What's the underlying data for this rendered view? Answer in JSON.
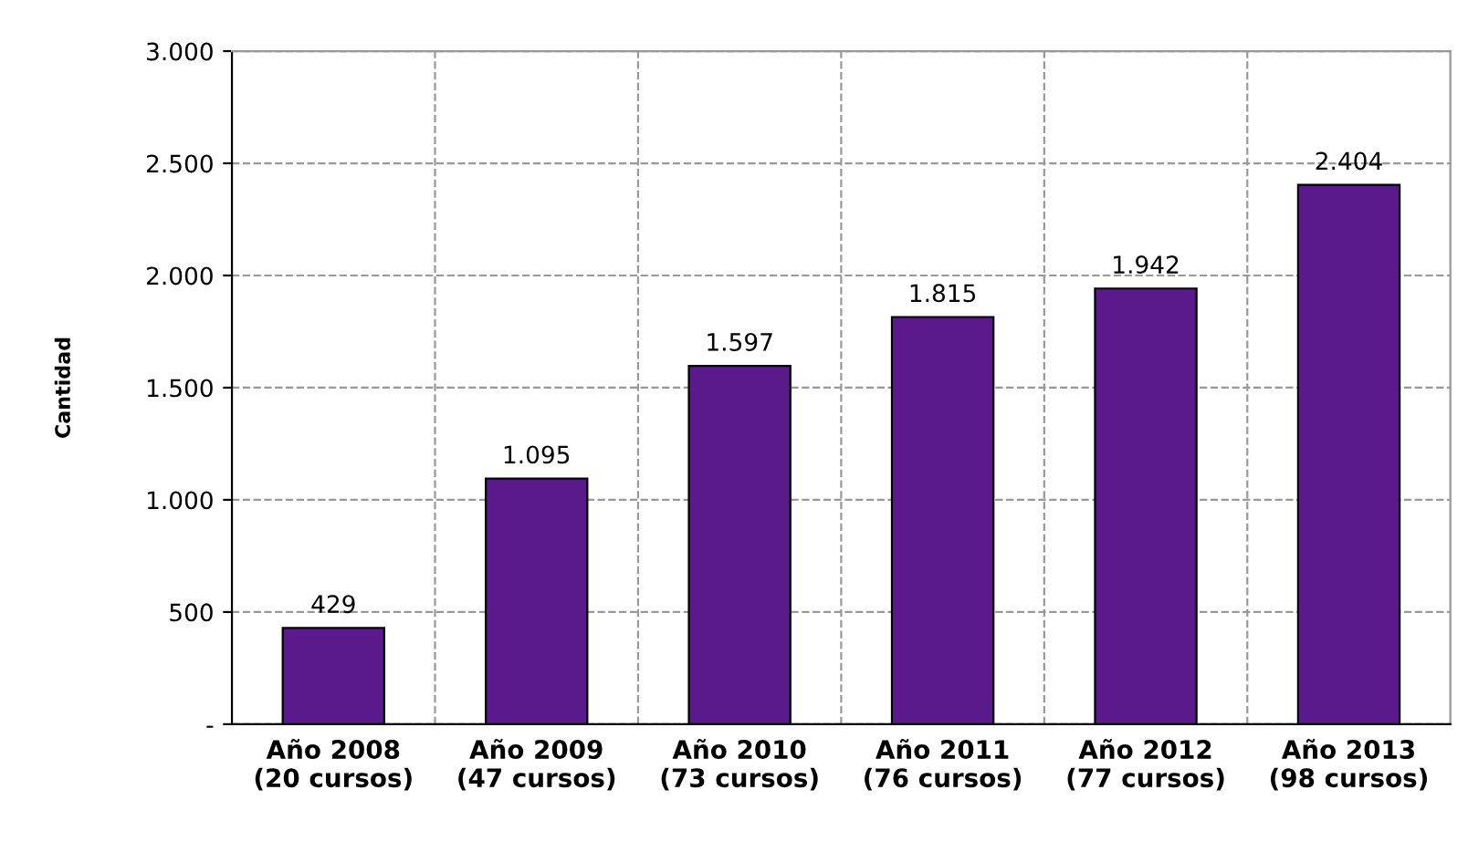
{
  "chart_data": {
    "type": "bar",
    "ylabel": "Cantidad",
    "categories": [
      "Año 2008\n(20 cursos)",
      "Año 2009\n(47 cursos)",
      "Año 2010\n(73 cursos)",
      "Año 2011\n(76 cursos)",
      "Año 2012\n(77 cursos)",
      "Año 2013\n(98 cursos)"
    ],
    "values": [
      429,
      1095,
      1597,
      1815,
      1942,
      2404
    ],
    "value_labels": [
      "429",
      "1.095",
      "1.597",
      "1.815",
      "1.942",
      "2.404"
    ],
    "color": "#5b1a8b",
    "ylim": [
      0,
      3000
    ],
    "yticks": [
      {
        "value": 0,
        "label": "-"
      },
      500,
      {
        "value": 1000,
        "label": "1.000"
      },
      {
        "value": 1500,
        "label": "1.500"
      },
      {
        "value": 2000,
        "label": "2.000"
      },
      {
        "value": 2500,
        "label": "2.500"
      },
      {
        "value": 3000,
        "label": "3.000"
      }
    ],
    "grid": true,
    "legend": false
  }
}
